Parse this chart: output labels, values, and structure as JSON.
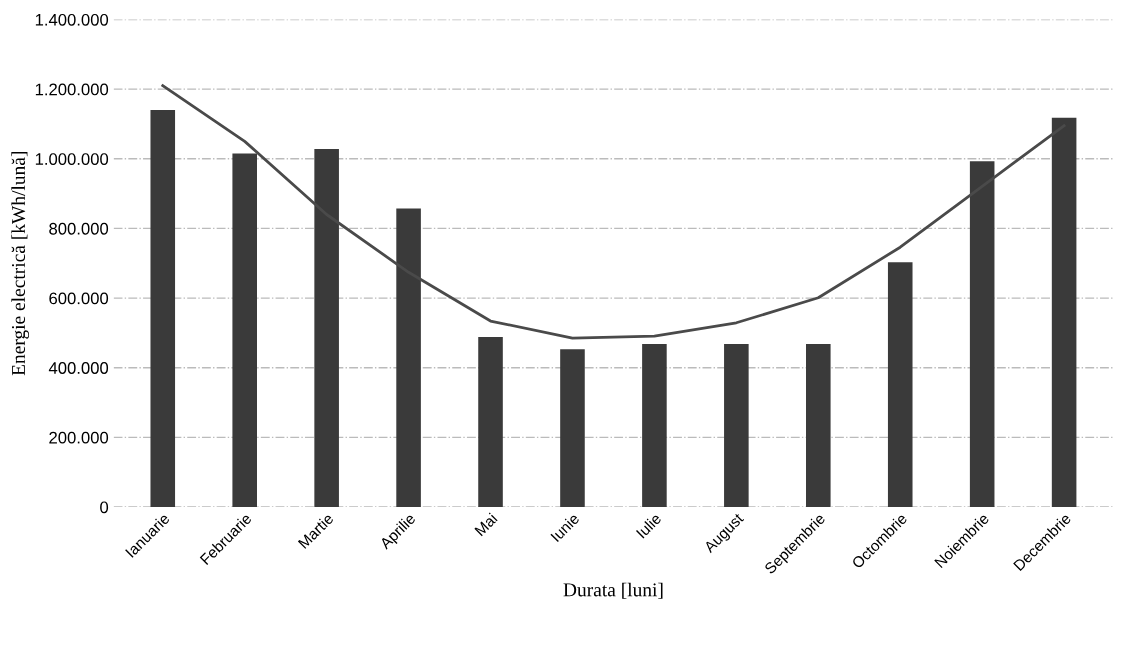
{
  "chart_data": {
    "type": "bar",
    "xlabel": "Durata [luni]",
    "ylabel": "Energie electrică [kWh/lună]",
    "categories": [
      "Ianuarie",
      "Februarie",
      "Martie",
      "Aprilie",
      "Mai",
      "Iunie",
      "Iulie",
      "August",
      "Septembrie",
      "Octombrie",
      "Noiembrie",
      "Decembrie"
    ],
    "series": [
      {
        "color": "#3a3a3a",
        "values": [
          1140000,
          1015000,
          1028000,
          857000,
          488000,
          453000,
          468000,
          468000,
          468000,
          703000,
          993000,
          1118000
        ]
      },
      {
        "type": "line",
        "color": "#4a4a4a",
        "values": [
          1210000,
          1050000,
          840000,
          674000,
          534000,
          485000,
          491000,
          529000,
          601000,
          746000,
          921000,
          1095000
        ]
      }
    ],
    "ylim": [
      0,
      1400000
    ],
    "yticks": [
      {
        "value": 0,
        "label": "0"
      },
      {
        "value": 200000,
        "label": "200.000"
      },
      {
        "value": 400000,
        "label": "400.000"
      },
      {
        "value": 600000,
        "label": "600.000"
      },
      {
        "value": 800000,
        "label": "800.000"
      },
      {
        "value": 1000000,
        "label": "1.000.000"
      },
      {
        "value": 1200000,
        "label": "1.200.000"
      },
      {
        "value": 1400000,
        "label": "1.400.000"
      }
    ],
    "grid": "y",
    "marker": "none"
  }
}
